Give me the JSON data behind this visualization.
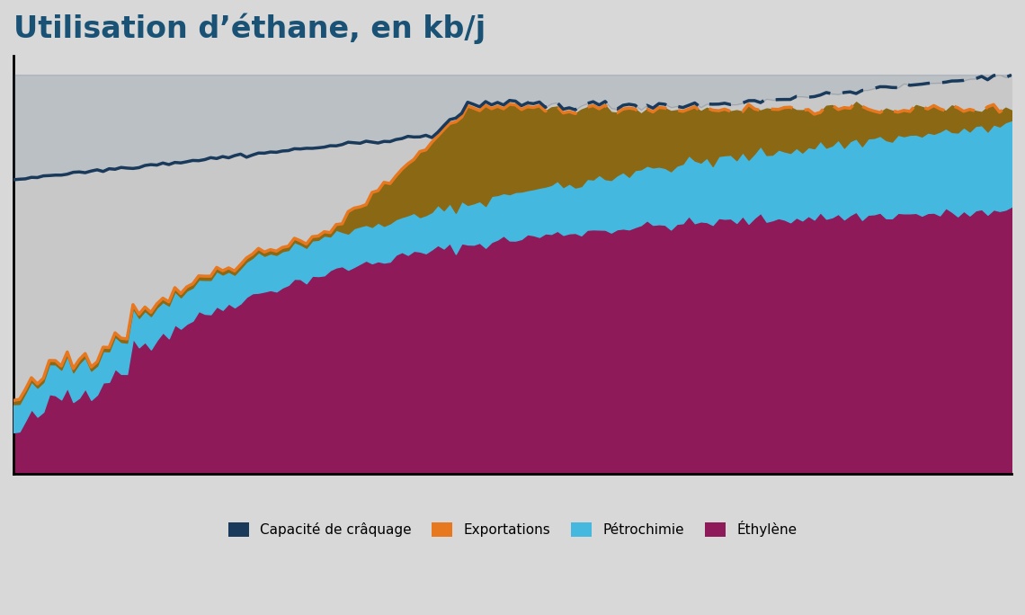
{
  "title": "Utilisation d’éthane, en kb/j",
  "title_fontsize": 24,
  "title_color": "#1a5276",
  "background_color": "#d8d8d8",
  "plot_bg_color": "#d8d8d8",
  "years_monthly": 168,
  "year_start": 2010,
  "colors": {
    "capacite": "#1a3a5c",
    "gray_area": "#c8c8c8",
    "brown": "#8B6914",
    "export": "#e87820",
    "petchim": "#45b8e0",
    "ethylene": "#8e1a5a"
  },
  "ylim": [
    0,
    2200
  ],
  "legend_labels": [
    "Capacité de crâquage",
    "Exportations",
    "Pétrochimie",
    "Éthylène"
  ],
  "legend_colors": [
    "#1a3a5c",
    "#e87820",
    "#45b8e0",
    "#8e1a5a"
  ]
}
